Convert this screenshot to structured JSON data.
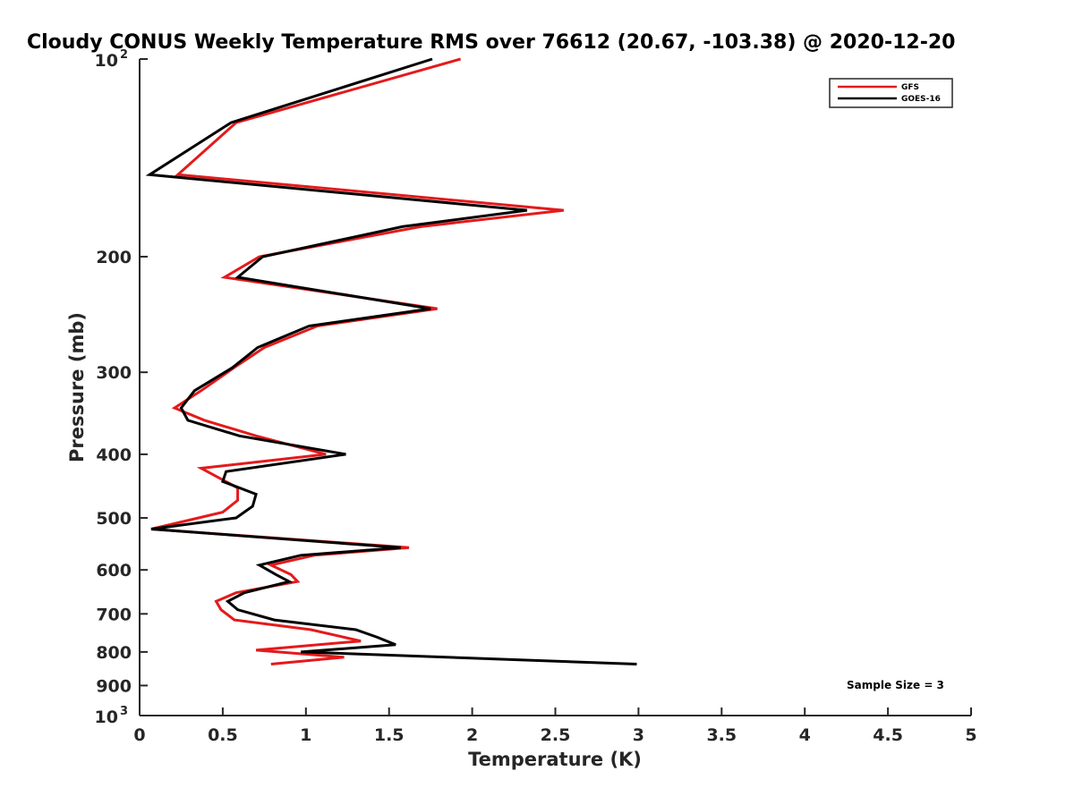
{
  "chart_data": {
    "type": "line",
    "title": "Cloudy CONUS Weekly Temperature RMS over 76612 (20.67, -103.38) @ 2020-12-20",
    "xlabel": "Temperature (K)",
    "ylabel": "Pressure (mb)",
    "xlim": [
      0,
      5
    ],
    "ylim": [
      100,
      1000
    ],
    "yscale": "log",
    "y_reversed": true,
    "x_ticks": [
      {
        "value": 0,
        "label": "0"
      },
      {
        "value": 0.5,
        "label": "0.5"
      },
      {
        "value": 1,
        "label": "1"
      },
      {
        "value": 1.5,
        "label": "1.5"
      },
      {
        "value": 2,
        "label": "2"
      },
      {
        "value": 2.5,
        "label": "2.5"
      },
      {
        "value": 3,
        "label": "3"
      },
      {
        "value": 3.5,
        "label": "3.5"
      },
      {
        "value": 4,
        "label": "4"
      },
      {
        "value": 4.5,
        "label": "4.5"
      },
      {
        "value": 5,
        "label": "5"
      }
    ],
    "y_ticks": [
      {
        "value": 100,
        "label": "10",
        "sup": "2"
      },
      {
        "value": 200,
        "label": "200"
      },
      {
        "value": 300,
        "label": "300"
      },
      {
        "value": 400,
        "label": "400"
      },
      {
        "value": 500,
        "label": "500"
      },
      {
        "value": 600,
        "label": "600"
      },
      {
        "value": 700,
        "label": "700"
      },
      {
        "value": 800,
        "label": "800"
      },
      {
        "value": 900,
        "label": "900"
      },
      {
        "value": 1000,
        "label": "10",
        "sup": "3"
      }
    ],
    "legend_position": "top-right",
    "annotation": "Sample Size = 3",
    "series": [
      {
        "name": "GFS",
        "color": "#e41a1c",
        "points": [
          [
            1.93,
            100
          ],
          [
            0.58,
            125
          ],
          [
            0.23,
            150
          ],
          [
            2.55,
            170
          ],
          [
            1.69,
            180
          ],
          [
            0.72,
            200
          ],
          [
            0.51,
            215
          ],
          [
            1.79,
            240
          ],
          [
            1.07,
            255
          ],
          [
            0.75,
            275
          ],
          [
            0.57,
            295
          ],
          [
            0.37,
            320
          ],
          [
            0.21,
            340
          ],
          [
            0.39,
            355
          ],
          [
            0.7,
            375
          ],
          [
            1.12,
            400
          ],
          [
            0.37,
            420
          ],
          [
            0.59,
            450
          ],
          [
            0.59,
            470
          ],
          [
            0.5,
            490
          ],
          [
            0.07,
            520
          ],
          [
            1.62,
            555
          ],
          [
            1.05,
            570
          ],
          [
            0.79,
            590
          ],
          [
            0.91,
            610
          ],
          [
            0.95,
            625
          ],
          [
            0.58,
            650
          ],
          [
            0.46,
            670
          ],
          [
            0.49,
            690
          ],
          [
            0.57,
            715
          ],
          [
            1.03,
            740
          ],
          [
            1.33,
            770
          ],
          [
            0.7,
            795
          ],
          [
            1.23,
            815
          ],
          [
            0.79,
            835
          ]
        ]
      },
      {
        "name": "GOES-16",
        "color": "#000000",
        "points": [
          [
            1.76,
            100
          ],
          [
            0.55,
            125
          ],
          [
            0.06,
            150
          ],
          [
            2.33,
            170
          ],
          [
            1.58,
            180
          ],
          [
            0.74,
            200
          ],
          [
            0.59,
            215
          ],
          [
            1.75,
            240
          ],
          [
            1.02,
            255
          ],
          [
            0.71,
            275
          ],
          [
            0.56,
            295
          ],
          [
            0.33,
            320
          ],
          [
            0.25,
            340
          ],
          [
            0.29,
            355
          ],
          [
            0.6,
            375
          ],
          [
            1.24,
            400
          ],
          [
            0.52,
            425
          ],
          [
            0.5,
            440
          ],
          [
            0.7,
            460
          ],
          [
            0.68,
            480
          ],
          [
            0.58,
            500
          ],
          [
            0.07,
            520
          ],
          [
            1.57,
            555
          ],
          [
            0.97,
            570
          ],
          [
            0.72,
            590
          ],
          [
            0.82,
            610
          ],
          [
            0.9,
            625
          ],
          [
            0.63,
            650
          ],
          [
            0.53,
            670
          ],
          [
            0.59,
            690
          ],
          [
            0.81,
            715
          ],
          [
            1.3,
            740
          ],
          [
            1.43,
            760
          ],
          [
            1.54,
            780
          ],
          [
            0.97,
            800
          ],
          [
            2.99,
            835
          ]
        ]
      }
    ]
  }
}
